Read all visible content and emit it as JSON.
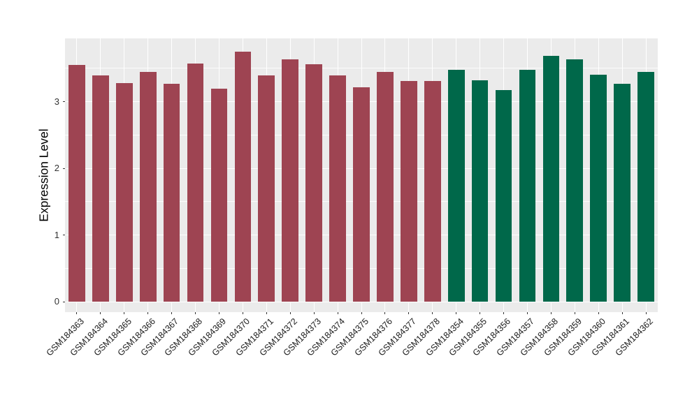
{
  "figure": {
    "background_color": "#FFFFFF",
    "panel_background_color": "#EBEBEB",
    "grid_color": "#FFFFFF",
    "axis_text_color": "#333333",
    "axis_title_color": "#000000"
  },
  "chart_data": {
    "type": "bar",
    "title": "",
    "xlabel": "",
    "ylabel": "Expression Level",
    "legend_position": "none",
    "grid": "major+minor horizontal, major vertical",
    "yticks": [
      0,
      1,
      2,
      3
    ],
    "ylim": [
      -0.16,
      3.94
    ],
    "categories": [
      "GSM184363",
      "GSM184364",
      "GSM184365",
      "GSM184366",
      "GSM184367",
      "GSM184368",
      "GSM184369",
      "GSM184370",
      "GSM184371",
      "GSM184372",
      "GSM184373",
      "GSM184374",
      "GSM184375",
      "GSM184376",
      "GSM184377",
      "GSM184378",
      "GSM184354",
      "GSM184355",
      "GSM184356",
      "GSM184357",
      "GSM184358",
      "GSM184359",
      "GSM184360",
      "GSM184361",
      "GSM184362"
    ],
    "values": [
      3.54,
      3.39,
      3.27,
      3.44,
      3.26,
      3.57,
      3.19,
      3.74,
      3.39,
      3.63,
      3.55,
      3.39,
      3.21,
      3.44,
      3.3,
      3.3,
      3.47,
      3.31,
      3.17,
      3.47,
      3.68,
      3.63,
      3.4,
      3.26,
      3.44
    ],
    "colors": [
      "#9E4452",
      "#9E4452",
      "#9E4452",
      "#9E4452",
      "#9E4452",
      "#9E4452",
      "#9E4452",
      "#9E4452",
      "#9E4452",
      "#9E4452",
      "#9E4452",
      "#9E4452",
      "#9E4452",
      "#9E4452",
      "#9E4452",
      "#9E4452",
      "#00684A",
      "#00684A",
      "#00684A",
      "#00684A",
      "#00684A",
      "#00684A",
      "#00684A",
      "#00684A",
      "#00684A"
    ]
  }
}
